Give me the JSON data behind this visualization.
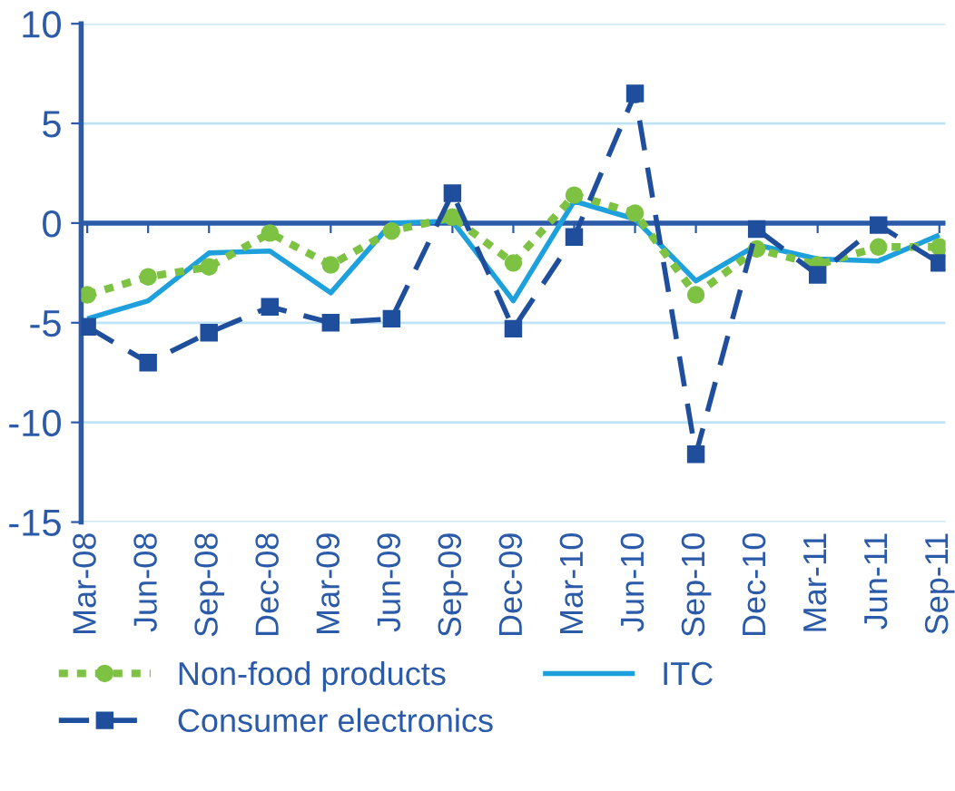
{
  "chart_data": {
    "type": "line",
    "categories": [
      "Mar-08",
      "Jun-08",
      "Sep-08",
      "Dec-08",
      "Mar-09",
      "Jun-09",
      "Sep-09",
      "Dec-09",
      "Mar-10",
      "Jun-10",
      "Sep-10",
      "Dec-10",
      "Mar-11",
      "Jun-11",
      "Sep-11"
    ],
    "series": [
      {
        "name": "Non-food products",
        "color": "#7dc242",
        "marker": "circle",
        "line_style": "dotted",
        "values": [
          -3.6,
          -2.7,
          -2.2,
          -0.5,
          -2.1,
          -0.4,
          0.3,
          -2.0,
          1.4,
          0.5,
          -3.6,
          -1.3,
          -2.1,
          -1.2,
          -1.2
        ]
      },
      {
        "name": "ITC",
        "color": "#1ea0dc",
        "marker": "none",
        "line_style": "solid",
        "values": [
          -4.8,
          -3.9,
          -1.5,
          -1.4,
          -3.5,
          0.0,
          0.1,
          -3.9,
          1.1,
          0.2,
          -2.9,
          -1.1,
          -1.8,
          -1.9,
          -0.6
        ]
      },
      {
        "name": "Consumer electronics",
        "color": "#1f4e9c",
        "marker": "square",
        "line_style": "dashed",
        "values": [
          -5.2,
          -7.0,
          -5.5,
          -4.2,
          -5.0,
          -4.8,
          1.5,
          -5.3,
          -0.7,
          6.5,
          -11.6,
          -0.3,
          -2.6,
          -0.1,
          -2.0
        ]
      }
    ],
    "ylim": [
      -15,
      10
    ],
    "yticks": [
      -15,
      -10,
      -5,
      0,
      5,
      10
    ],
    "grid": "y",
    "legend": "bottom",
    "ref_lines": [
      {
        "axis": "y",
        "value": 0,
        "color": "#2a5aa8"
      }
    ]
  }
}
